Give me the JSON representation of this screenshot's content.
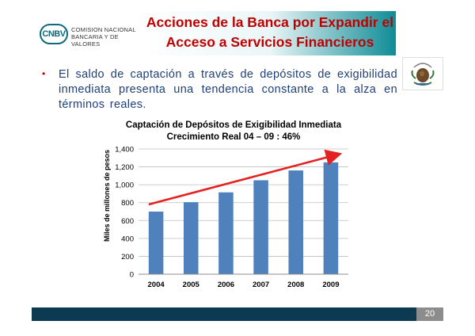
{
  "header": {
    "logo_abbr": "CNBV",
    "logo_line1": "COMISION NACIONAL",
    "logo_line2": "BANCARIA Y DE VALORES",
    "title_line1": "Acciones de la Banca por Expandir el",
    "title_line2": "Acceso a Servicios Financieros"
  },
  "bullet": {
    "marker": "•",
    "text": "El saldo de captación a través de depósitos de exigibilidad inmediata presenta una tendencia constante a la alza en términos reales."
  },
  "footer": {
    "page_number": "20"
  },
  "colors": {
    "title": "#c00000",
    "bar": "#4f81bd",
    "arrow": "#e52222",
    "footer": "#0b3a52",
    "bullet_text": "#1f3f7a"
  },
  "chart_data": {
    "type": "bar",
    "title": "Captación de Depósitos de Exigibilidad Inmediata",
    "subtitle": "Crecimiento Real 04 – 09 : 46%",
    "ylabel": "Miles de millones de pesos",
    "xlabel": "",
    "categories": [
      "2004",
      "2005",
      "2006",
      "2007",
      "2008",
      "2009"
    ],
    "values": [
      700,
      805,
      915,
      1050,
      1160,
      1250
    ],
    "ylim": [
      0,
      1400
    ],
    "yticks": [
      0,
      200,
      400,
      600,
      800,
      1000,
      1200,
      1400
    ],
    "ytick_labels": [
      "0",
      "200",
      "400",
      "600",
      "800",
      "1,000",
      "1,200",
      "1,400"
    ],
    "grid": true,
    "trend_arrow": {
      "from": [
        "2004",
        780
      ],
      "to": [
        "2009",
        1340
      ]
    }
  }
}
